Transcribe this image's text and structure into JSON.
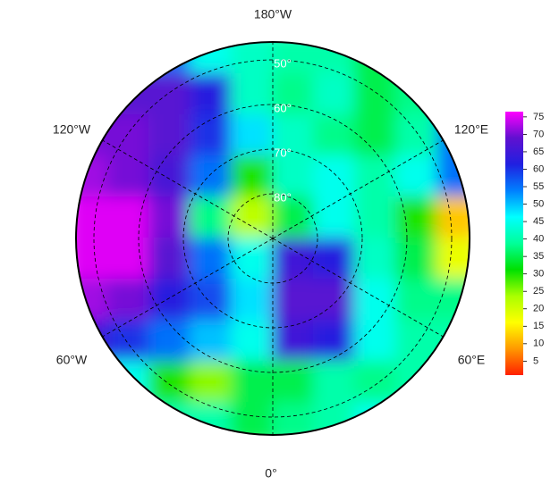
{
  "chart_data": {
    "type": "polar-heatmap",
    "z": [
      [
        60,
        60,
        55,
        45,
        42,
        40,
        40,
        35,
        35,
        35
      ],
      [
        65,
        68,
        68,
        62,
        42,
        38,
        42,
        35,
        38,
        40
      ],
      [
        70,
        70,
        68,
        60,
        48,
        42,
        38,
        35,
        40,
        55
      ],
      [
        72,
        70,
        66,
        55,
        30,
        42,
        45,
        40,
        45,
        55
      ],
      [
        75,
        75,
        70,
        38,
        22,
        35,
        45,
        40,
        30,
        12
      ],
      [
        75,
        75,
        68,
        55,
        45,
        65,
        62,
        42,
        35,
        18
      ],
      [
        72,
        70,
        62,
        58,
        48,
        68,
        68,
        45,
        38,
        38
      ],
      [
        65,
        60,
        55,
        50,
        45,
        65,
        62,
        45,
        40,
        40
      ],
      [
        50,
        45,
        30,
        25,
        35,
        35,
        40,
        38,
        40,
        40
      ],
      [
        45,
        45,
        40,
        40,
        35,
        38,
        40,
        45,
        45,
        45
      ]
    ],
    "zlim": [
      1,
      76.5
    ],
    "zticks": [
      5,
      10,
      15,
      20,
      25,
      30,
      35,
      40,
      45,
      50,
      55,
      60,
      65,
      70,
      75
    ],
    "colors": [
      "#ff2000",
      "#ff9900",
      "#ffff00",
      "#aaff00",
      "#00e000",
      "#00ff99",
      "#00ffff",
      "#0080ff",
      "#2020e0",
      "#6010d0",
      "#ff00ff"
    ],
    "lon_labels": [
      "180°W",
      "120°E",
      "60°E",
      "0°",
      "60°W",
      "120°W"
    ],
    "lat_labels": [
      "50°",
      "60°",
      "70°",
      "80°"
    ]
  }
}
